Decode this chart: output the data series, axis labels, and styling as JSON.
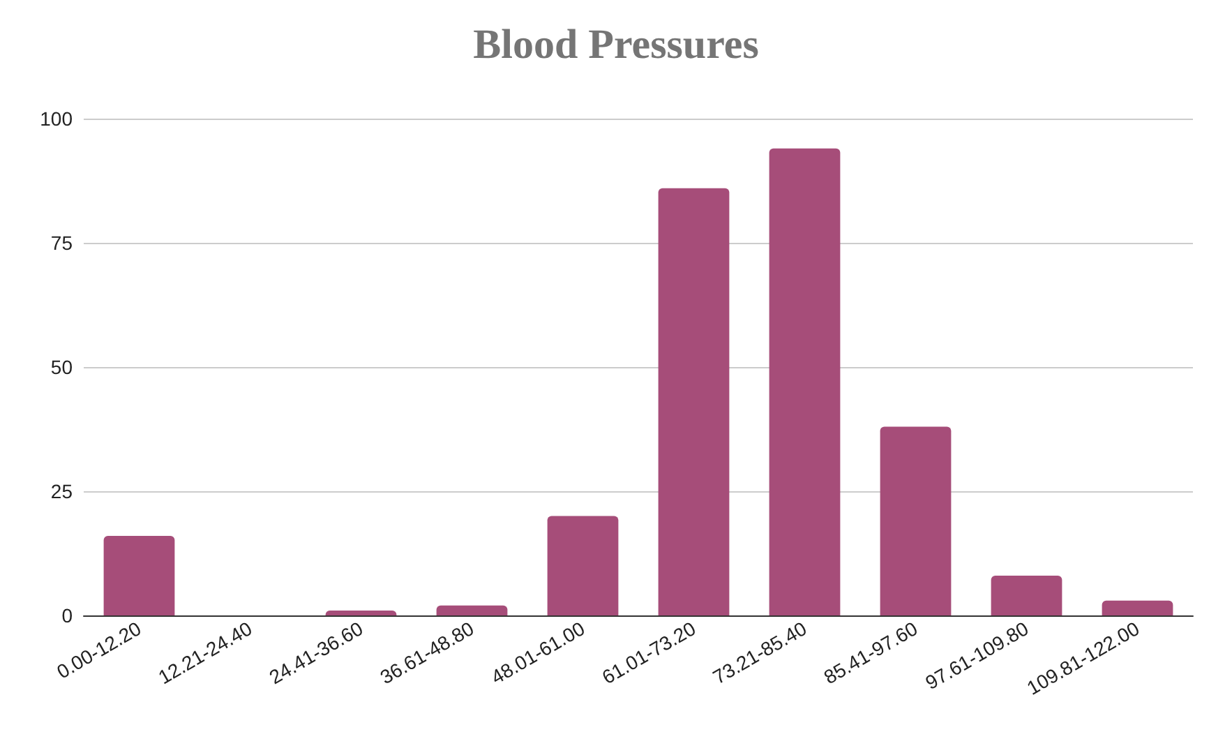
{
  "chart_data": {
    "type": "bar",
    "title": "Blood Pressures",
    "categories": [
      "0.00-12.20",
      "12.21-24.40",
      "24.41-36.60",
      "36.61-48.80",
      "48.01-61.00",
      "61.01-73.20",
      "73.21-85.40",
      "85.41-97.60",
      "97.61-109.80",
      "109.81-122.00"
    ],
    "values": [
      16,
      0,
      1,
      2,
      20,
      86,
      94,
      38,
      8,
      3
    ],
    "color": "#a64d79",
    "ylim": [
      0,
      100
    ],
    "yticks": [
      0,
      25,
      50,
      75,
      100
    ],
    "grid": "y"
  }
}
